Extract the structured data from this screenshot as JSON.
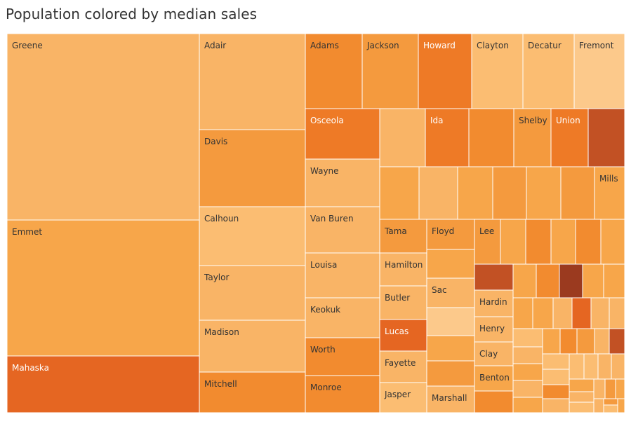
{
  "title": "Population colored by median sales",
  "chart_data": {
    "type": "treemap",
    "title": "Population colored by median sales",
    "size_measure": "Population",
    "color_measure": "median sales",
    "colors": {
      "1": "#fcc98b",
      "2": "#fbbd72",
      "3": "#f9b466",
      "4": "#f7a64a",
      "5": "#f49a3e",
      "6": "#f28b2f",
      "7": "#ee7a26",
      "8": "#e56622",
      "9": "#c25124",
      "10": "#9b3a1f"
    },
    "cells": [
      {
        "label": "Greene",
        "c": 3
      },
      {
        "label": "Emmet",
        "c": 4
      },
      {
        "label": "Mahaska",
        "c": 8
      },
      {
        "label": "Adair",
        "c": 3
      },
      {
        "label": "Davis",
        "c": 5
      },
      {
        "label": "Calhoun",
        "c": 2
      },
      {
        "label": "Taylor",
        "c": 3
      },
      {
        "label": "Madison",
        "c": 3
      },
      {
        "label": "Mitchell",
        "c": 6
      },
      {
        "label": "Adams",
        "c": 6
      },
      {
        "label": "Jackson",
        "c": 5
      },
      {
        "label": "Howard",
        "c": 7
      },
      {
        "label": "Clayton",
        "c": 2
      },
      {
        "label": "Decatur",
        "c": 2
      },
      {
        "label": "Fremont",
        "c": 1
      },
      {
        "label": "Osceola",
        "c": 7
      },
      {
        "label": "Wayne",
        "c": 3
      },
      {
        "label": "Van Buren",
        "c": 3
      },
      {
        "label": "Louisa",
        "c": 3
      },
      {
        "label": "Keokuk",
        "c": 3
      },
      {
        "label": "Worth",
        "c": 6
      },
      {
        "label": "Monroe",
        "c": 6
      },
      {
        "label": "",
        "c": 3
      },
      {
        "label": "Ida",
        "c": 7
      },
      {
        "label": "",
        "c": 6
      },
      {
        "label": "Shelby",
        "c": 5
      },
      {
        "label": "Union",
        "c": 7
      },
      {
        "label": "",
        "c": 9
      },
      {
        "label": "",
        "c": 4
      },
      {
        "label": "",
        "c": 3
      },
      {
        "label": "",
        "c": 4
      },
      {
        "label": "",
        "c": 5
      },
      {
        "label": "",
        "c": 4
      },
      {
        "label": "",
        "c": 5
      },
      {
        "label": "Mills",
        "c": 4
      },
      {
        "label": "Tama",
        "c": 5
      },
      {
        "label": "Floyd",
        "c": 5
      },
      {
        "label": "",
        "c": 4
      },
      {
        "label": "Hamilton",
        "c": 3
      },
      {
        "label": "Sac",
        "c": 3
      },
      {
        "label": "Butler",
        "c": 3
      },
      {
        "label": "",
        "c": 1
      },
      {
        "label": "Lucas",
        "c": 8
      },
      {
        "label": "Fayette",
        "c": 3
      },
      {
        "label": "",
        "c": 4
      },
      {
        "label": "",
        "c": 5
      },
      {
        "label": "Jasper",
        "c": 2
      },
      {
        "label": "Marshall",
        "c": 3
      },
      {
        "label": "Lee",
        "c": 5
      },
      {
        "label": "",
        "c": 4
      },
      {
        "label": "",
        "c": 6
      },
      {
        "label": "",
        "c": 4
      },
      {
        "label": "",
        "c": 6
      },
      {
        "label": "",
        "c": 4
      },
      {
        "label": "",
        "c": 9
      },
      {
        "label": "Hardin",
        "c": 3
      },
      {
        "label": "Henry",
        "c": 3
      },
      {
        "label": "Clay",
        "c": 3
      },
      {
        "label": "Benton",
        "c": 4
      },
      {
        "label": "",
        "c": 6
      },
      {
        "label": "",
        "c": 4
      },
      {
        "label": "",
        "c": 6
      },
      {
        "label": "",
        "c": 10
      },
      {
        "label": "",
        "c": 4
      },
      {
        "label": "",
        "c": 4
      },
      {
        "label": "",
        "c": 4
      },
      {
        "label": "",
        "c": 4
      },
      {
        "label": "",
        "c": 3
      },
      {
        "label": "",
        "c": 8
      },
      {
        "label": "",
        "c": 3
      },
      {
        "label": "",
        "c": 3
      },
      {
        "label": "",
        "c": 2
      },
      {
        "label": "",
        "c": 4
      },
      {
        "label": "",
        "c": 6
      },
      {
        "label": "",
        "c": 5
      },
      {
        "label": "",
        "c": 3
      },
      {
        "label": "",
        "c": 9
      },
      {
        "label": "",
        "c": 3
      },
      {
        "label": "",
        "c": 4
      },
      {
        "label": "",
        "c": 3
      },
      {
        "label": "",
        "c": 4
      },
      {
        "label": "",
        "c": 2
      },
      {
        "label": "",
        "c": 2
      },
      {
        "label": "",
        "c": 6
      },
      {
        "label": "",
        "c": 3
      },
      {
        "label": "",
        "c": 2
      },
      {
        "label": "",
        "c": 2
      },
      {
        "label": "",
        "c": 3
      },
      {
        "label": "",
        "c": 3
      },
      {
        "label": "",
        "c": 4
      },
      {
        "label": "",
        "c": 3
      },
      {
        "label": "",
        "c": 2
      },
      {
        "label": "",
        "c": 3
      },
      {
        "label": "",
        "c": 5
      },
      {
        "label": "",
        "c": 4
      },
      {
        "label": "",
        "c": 3
      },
      {
        "label": "",
        "c": 5
      },
      {
        "label": "",
        "c": 2
      },
      {
        "label": "",
        "c": 4
      },
      {
        "label": "",
        "c": 6
      },
      {
        "label": "",
        "c": 3
      },
      {
        "label": "",
        "c": 4
      },
      {
        "label": "",
        "c": 3
      },
      {
        "label": "",
        "c": 4
      },
      {
        "label": "",
        "c": 2
      },
      {
        "label": "",
        "c": 5
      },
      {
        "label": "",
        "c": 3
      },
      {
        "label": "",
        "c": 8
      },
      {
        "label": "",
        "c": 4
      }
    ]
  }
}
